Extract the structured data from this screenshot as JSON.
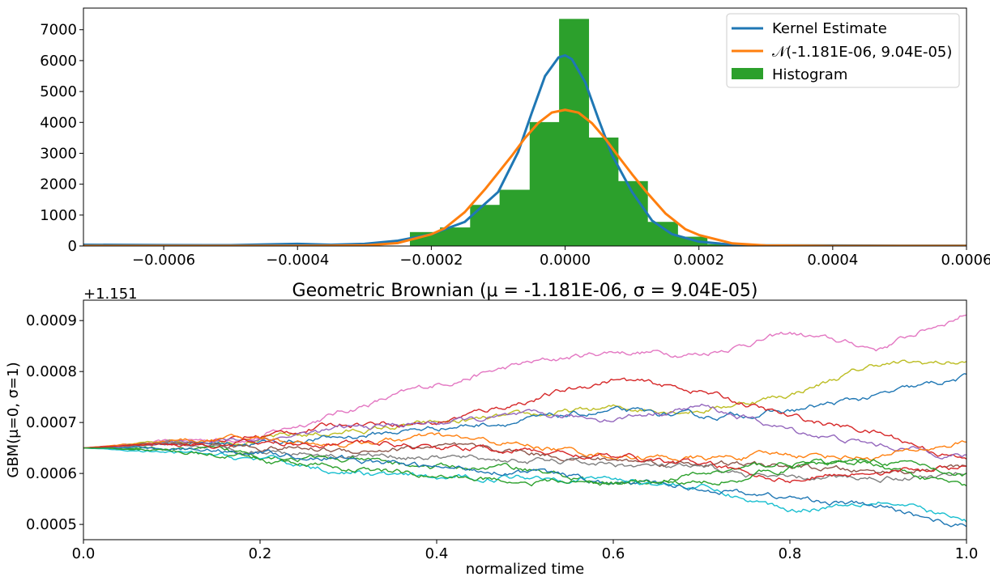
{
  "colors": {
    "kernel": "#1f77b4",
    "normal": "#ff7f0e",
    "histogram": "#2ca02c",
    "walk_palette": [
      "#1f77b4",
      "#ff7f0e",
      "#2ca02c",
      "#d62728",
      "#9467bd",
      "#8c564b",
      "#e377c2",
      "#7f7f7f",
      "#bcbd22",
      "#17becf"
    ]
  },
  "chart_data": [
    {
      "type": "bar",
      "title": "",
      "xlabel": "",
      "ylabel": "",
      "xlim": [
        -0.00072,
        0.0006
      ],
      "ylim": [
        0,
        7700
      ],
      "xticks": [
        -0.0006,
        -0.0004,
        -0.0002,
        0.0,
        0.0002,
        0.0004,
        0.0006
      ],
      "xtick_labels": [
        "−0.0006",
        "−0.0004",
        "−0.0002",
        "0.0000",
        "0.0002",
        "0.0004",
        "0.0006"
      ],
      "yticks": [
        0,
        1000,
        2000,
        3000,
        4000,
        5000,
        6000,
        7000
      ],
      "ytick_labels": [
        "0",
        "1000",
        "2000",
        "3000",
        "4000",
        "5000",
        "6000",
        "7000"
      ],
      "legend": {
        "position": "top-right",
        "entries": [
          "Kernel Estimate",
          "𝒩(-1.181E-06, 9.04E-05)",
          "Histogram"
        ]
      },
      "histogram": {
        "bins": [
          {
            "x0": -0.000232,
            "x1": -0.000187,
            "height": 450
          },
          {
            "x0": -0.000187,
            "x1": -0.000142,
            "height": 600
          },
          {
            "x0": -0.000142,
            "x1": -9.8e-05,
            "height": 1330
          },
          {
            "x0": -9.8e-05,
            "x1": -5.3e-05,
            "height": 1820
          },
          {
            "x0": -5.3e-05,
            "x1": -9e-06,
            "height": 4010
          },
          {
            "x0": -9e-06,
            "x1": 3.5e-05,
            "height": 7350
          },
          {
            "x0": 3.5e-05,
            "x1": 7.9e-05,
            "height": 3510
          },
          {
            "x0": 7.9e-05,
            "x1": 0.000123,
            "height": 2100
          },
          {
            "x0": 0.000123,
            "x1": 0.000168,
            "height": 780
          },
          {
            "x0": 0.000168,
            "x1": 0.000212,
            "height": 300
          },
          {
            "x0": 0.000212,
            "x1": 0.000256,
            "height": 60
          }
        ]
      },
      "series": [
        {
          "name": "Kernel Estimate",
          "x": [
            -0.00072,
            -0.0006,
            -0.0005,
            -0.00045,
            -0.0004,
            -0.00035,
            -0.0003,
            -0.00025,
            -0.0002,
            -0.00015,
            -0.0001,
            -7e-05,
            -5e-05,
            -3e-05,
            -1e-05,
            0.0,
            1e-05,
            3e-05,
            5e-05,
            7e-05,
            0.0001,
            0.00013,
            0.00016,
            0.0002,
            0.00025,
            0.0003,
            0.0004,
            0.0005,
            0.0006
          ],
          "y": [
            40,
            30,
            25,
            50,
            70,
            40,
            70,
            170,
            380,
            780,
            1750,
            3050,
            4300,
            5500,
            6100,
            6170,
            6050,
            5300,
            4100,
            2950,
            1750,
            820,
            380,
            140,
            40,
            20,
            15,
            10,
            10
          ]
        },
        {
          "name": "𝒩(-1.181E-06, 9.04E-05)",
          "x": [
            -0.00072,
            -0.0006,
            -0.0005,
            -0.0004,
            -0.0003,
            -0.00025,
            -0.0002,
            -0.00018,
            -0.00015,
            -0.00012,
            -0.0001,
            -8e-05,
            -6e-05,
            -4e-05,
            -2e-05,
            0.0,
            2e-05,
            4e-05,
            6e-05,
            8e-05,
            0.0001,
            0.00012,
            0.00015,
            0.00018,
            0.0002,
            0.00025,
            0.0003,
            0.0004,
            0.0005,
            0.0006
          ],
          "y": [
            0,
            0,
            0,
            2,
            18,
            96,
            378,
            573,
            1095,
            1830,
            2367,
            2911,
            3493,
            3983,
            4318,
            4406,
            4317,
            3977,
            3474,
            2888,
            2324,
            1788,
            1053,
            539,
            356,
            84,
            16,
            1,
            0,
            0
          ]
        }
      ]
    },
    {
      "type": "line",
      "title": "Geometric Brownian ($\\mu$ = -1.181E-06, $\\sigma$ = 9.04E-05)",
      "title_text": "Geometric Brownian (μ = -1.181E-06, σ = 9.04E-05)",
      "xlabel": "normalized time",
      "ylabel": "GBM(μ=0, σ=1)",
      "offset_label": "+1.151",
      "xlim": [
        0,
        1
      ],
      "ylim": [
        0.00047,
        0.00094
      ],
      "xticks": [
        0,
        0.2,
        0.4,
        0.6,
        0.8,
        1.0
      ],
      "xtick_labels": [
        "0.0",
        "0.2",
        "0.4",
        "0.6",
        "0.8",
        "1.0"
      ],
      "yticks": [
        0.0005,
        0.0006,
        0.0007,
        0.0008,
        0.0009
      ],
      "ytick_labels": [
        "0.0005",
        "0.0006",
        "0.0007",
        "0.0008",
        "0.0009"
      ],
      "x": [
        0,
        0.1,
        0.2,
        0.3,
        0.4,
        0.5,
        0.6,
        0.7,
        0.8,
        0.9,
        1.0
      ],
      "series": [
        {
          "color": "#e377c2",
          "values": [
            0.00065,
            0.000663,
            0.000672,
            0.000725,
            0.000775,
            0.000815,
            0.00084,
            0.000835,
            0.000875,
            0.000845,
            0.000915
          ]
        },
        {
          "color": "#bcbd22",
          "values": [
            0.00065,
            0.000662,
            0.000668,
            0.000682,
            0.000698,
            0.000712,
            0.000728,
            0.000725,
            0.000755,
            0.000815,
            0.000818
          ]
        },
        {
          "color": "#1f77b4",
          "values": [
            0.00065,
            0.00066,
            0.00066,
            0.000672,
            0.00069,
            0.000704,
            0.000722,
            0.00071,
            0.000722,
            0.000752,
            0.000788
          ]
        },
        {
          "color": "#d62728",
          "values": [
            0.00065,
            0.000658,
            0.000672,
            0.0007,
            0.0007,
            0.000742,
            0.000785,
            0.000762,
            0.00071,
            0.00068,
            0.000625
          ]
        },
        {
          "color": "#9467bd",
          "values": [
            0.00065,
            0.000662,
            0.000668,
            0.000688,
            0.0007,
            0.000712,
            0.000708,
            0.000732,
            0.000685,
            0.000655,
            0.000635
          ]
        },
        {
          "color": "#ff7f0e",
          "values": [
            0.00065,
            0.000665,
            0.000668,
            0.000658,
            0.000672,
            0.000655,
            0.000635,
            0.000628,
            0.000638,
            0.000632,
            0.000662
          ]
        },
        {
          "color": "#8c564b",
          "values": [
            0.00065,
            0.00066,
            0.000652,
            0.000645,
            0.000652,
            0.000642,
            0.000625,
            0.00062,
            0.000612,
            0.000602,
            0.000612
          ]
        },
        {
          "color": "#7f7f7f",
          "values": [
            0.00065,
            0.000655,
            0.000645,
            0.000638,
            0.000632,
            0.000625,
            0.000618,
            0.000608,
            0.000588,
            0.000592,
            0.000598
          ]
        },
        {
          "color": "#2ca02c",
          "values": [
            0.00065,
            0.000648,
            0.000638,
            0.000625,
            0.000612,
            0.000612,
            0.000575,
            0.000598,
            0.000622,
            0.000618,
            0.000572
          ]
        },
        {
          "color": "#17becf",
          "values": [
            0.00065,
            0.00064,
            0.000628,
            0.000602,
            0.000588,
            0.000595,
            0.00059,
            0.000572,
            0.000528,
            0.00055,
            0.000505
          ]
        },
        {
          "color": "#1f77b4",
          "values": [
            0.00065,
            0.00065,
            0.000642,
            0.000628,
            0.00061,
            0.000605,
            0.00058,
            0.000572,
            0.000552,
            0.000535,
            0.000495
          ]
        },
        {
          "color": "#d62728",
          "values": [
            0.00065,
            0.000658,
            0.000658,
            0.000662,
            0.000652,
            0.000645,
            0.000632,
            0.000618,
            0.000588,
            0.000605,
            0.000612
          ]
        },
        {
          "color": "#2ca02c",
          "values": [
            0.00065,
            0.000645,
            0.000625,
            0.00061,
            0.000595,
            0.000585,
            0.000582,
            0.00058,
            0.000612,
            0.000628,
            0.000598
          ]
        }
      ]
    }
  ]
}
